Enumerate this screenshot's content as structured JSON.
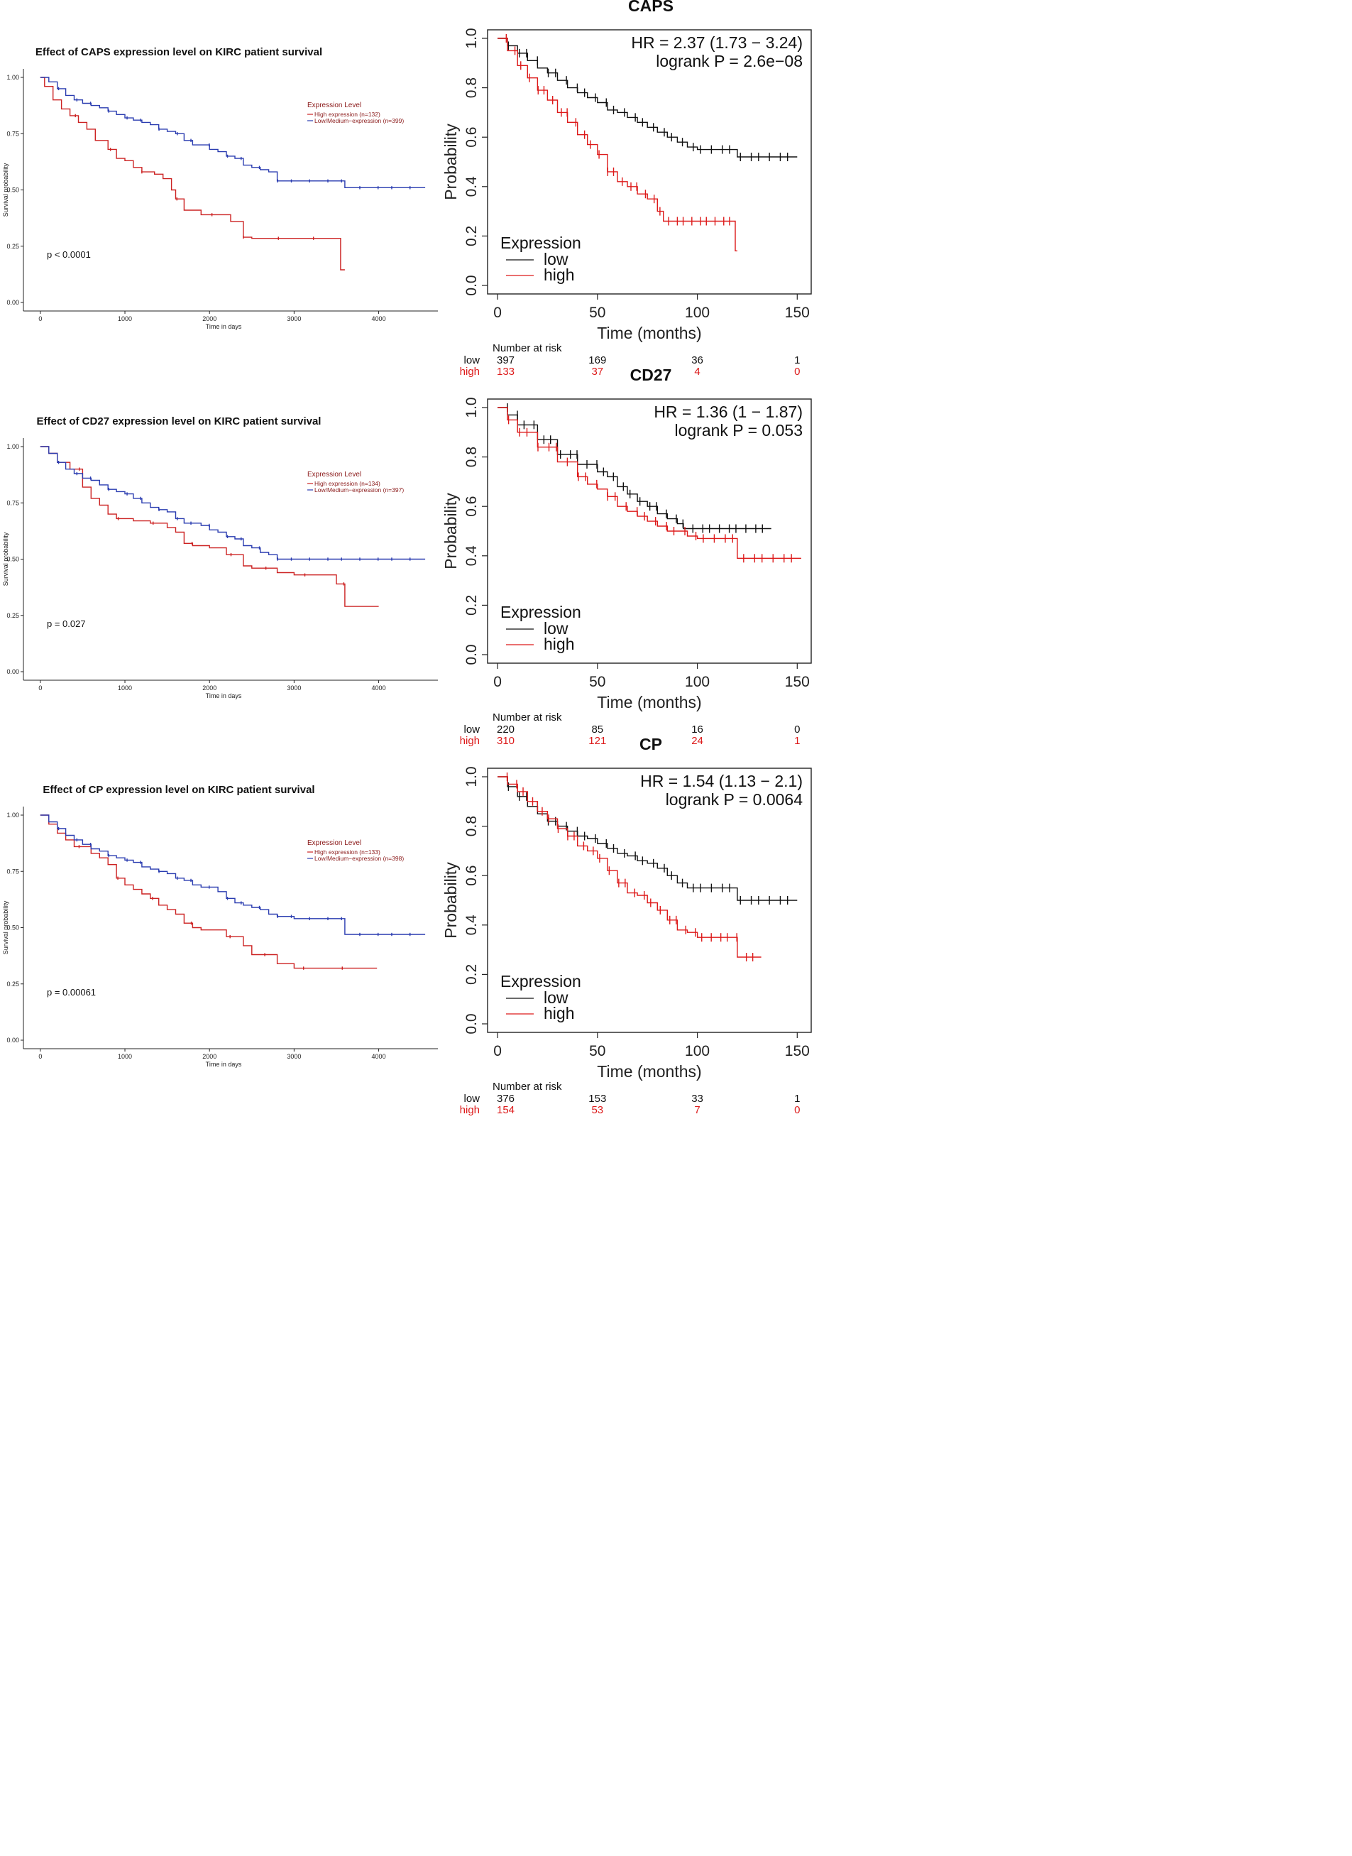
{
  "colors": {
    "high_left": "#cc2222",
    "low_left": "#2a3cb0",
    "high_right": "#dd1a1a",
    "low_right": "#111111",
    "axis": "#222222"
  },
  "chart_data": [
    {
      "type": "line",
      "subtype": "kaplan-meier",
      "title": "Effect of CAPS expression level on KIRC patient survival",
      "xlabel": "Time in days",
      "ylabel": "Survival probability",
      "xlim": [
        -200,
        4700
      ],
      "ylim": [
        0,
        1.0
      ],
      "xticks": [
        "0",
        "1000",
        "2000",
        "3000",
        "4000"
      ],
      "yticks": [
        "0.00",
        "0.25",
        "0.50",
        "0.75",
        "1.00"
      ],
      "legend_title": "Expression Level",
      "pvalue": "p < 0.0001",
      "series": [
        {
          "name": "High expression (n=132)",
          "group": "high",
          "x": [
            0,
            50,
            150,
            250,
            350,
            450,
            550,
            650,
            800,
            900,
            1000,
            1100,
            1200,
            1350,
            1450,
            1550,
            1600,
            1700,
            1900,
            2250,
            2400,
            2500,
            2800,
            3200,
            3550,
            3600
          ],
          "y": [
            1.0,
            0.96,
            0.9,
            0.86,
            0.83,
            0.8,
            0.77,
            0.72,
            0.68,
            0.64,
            0.63,
            0.6,
            0.58,
            0.57,
            0.55,
            0.5,
            0.46,
            0.41,
            0.39,
            0.36,
            0.29,
            0.285,
            0.285,
            0.285,
            0.145,
            0.145
          ]
        },
        {
          "name": "Low/Medium−expression (n=399)",
          "group": "low",
          "x": [
            0,
            100,
            200,
            300,
            400,
            500,
            600,
            700,
            800,
            900,
            1000,
            1100,
            1200,
            1300,
            1400,
            1500,
            1600,
            1700,
            1800,
            1900,
            2000,
            2100,
            2200,
            2300,
            2400,
            2500,
            2600,
            2700,
            2800,
            3000,
            3200,
            3400,
            3600,
            3800,
            4000,
            4300,
            4550
          ],
          "y": [
            1.0,
            0.98,
            0.95,
            0.92,
            0.9,
            0.885,
            0.875,
            0.865,
            0.85,
            0.835,
            0.82,
            0.81,
            0.8,
            0.79,
            0.77,
            0.76,
            0.75,
            0.72,
            0.7,
            0.7,
            0.68,
            0.67,
            0.65,
            0.64,
            0.61,
            0.6,
            0.59,
            0.58,
            0.54,
            0.54,
            0.54,
            0.54,
            0.51,
            0.51,
            0.51,
            0.51,
            0.51
          ]
        }
      ]
    },
    {
      "type": "line",
      "subtype": "kaplan-meier",
      "title": "CAPS",
      "xlabel": "Time (months)",
      "ylabel": "Probability",
      "xlim": [
        -5,
        157
      ],
      "ylim": [
        0,
        1.0
      ],
      "xticks": [
        "0",
        "50",
        "100",
        "150"
      ],
      "yticks": [
        "0.0",
        "0.2",
        "0.4",
        "0.6",
        "0.8",
        "1.0"
      ],
      "hr": "HR = 2.37 (1.73 − 3.24)",
      "logrank": "logrank P = 2.6e−08",
      "legend_title": "Expression",
      "series": [
        {
          "name": "low",
          "group": "low",
          "x": [
            0,
            5,
            10,
            15,
            20,
            25,
            30,
            35,
            40,
            45,
            50,
            55,
            60,
            65,
            70,
            75,
            80,
            85,
            90,
            95,
            100,
            110,
            120,
            130,
            150
          ],
          "y": [
            1.0,
            0.97,
            0.94,
            0.91,
            0.88,
            0.86,
            0.83,
            0.8,
            0.78,
            0.76,
            0.74,
            0.71,
            0.7,
            0.68,
            0.66,
            0.64,
            0.62,
            0.6,
            0.58,
            0.56,
            0.55,
            0.55,
            0.52,
            0.52,
            0.52
          ]
        },
        {
          "name": "high",
          "group": "high",
          "x": [
            0,
            5,
            10,
            15,
            20,
            25,
            30,
            35,
            40,
            45,
            50,
            55,
            60,
            65,
            70,
            75,
            80,
            83,
            90,
            100,
            110,
            118,
            119,
            120
          ],
          "y": [
            1.0,
            0.95,
            0.89,
            0.84,
            0.79,
            0.75,
            0.7,
            0.66,
            0.61,
            0.57,
            0.53,
            0.46,
            0.42,
            0.4,
            0.37,
            0.35,
            0.3,
            0.26,
            0.26,
            0.26,
            0.26,
            0.26,
            0.14,
            0.14
          ]
        }
      ],
      "risk_table": {
        "header": "Number at risk",
        "times": [
          0,
          50,
          100,
          150
        ],
        "rows": [
          {
            "label": "low",
            "values": [
              "397",
              "169",
              "36",
              "1"
            ]
          },
          {
            "label": "high",
            "values": [
              "133",
              "37",
              "4",
              "0"
            ]
          }
        ]
      }
    },
    {
      "type": "line",
      "subtype": "kaplan-meier",
      "title": "Effect of CD27 expression level on KIRC patient survival",
      "xlabel": "Time in days",
      "ylabel": "Survival probability",
      "xlim": [
        -200,
        4700
      ],
      "ylim": [
        0,
        1.0
      ],
      "xticks": [
        "0",
        "1000",
        "2000",
        "3000",
        "4000"
      ],
      "yticks": [
        "0.00",
        "0.25",
        "0.50",
        "0.75",
        "1.00"
      ],
      "legend_title": "Expression Level",
      "pvalue": "p = 0.027",
      "series": [
        {
          "name": "High expression (n=134)",
          "group": "high",
          "x": [
            0,
            100,
            200,
            350,
            500,
            600,
            700,
            800,
            900,
            1100,
            1300,
            1500,
            1600,
            1700,
            1800,
            2000,
            2200,
            2400,
            2500,
            2800,
            3000,
            3500,
            3600,
            4000
          ],
          "y": [
            1.0,
            0.97,
            0.93,
            0.9,
            0.82,
            0.77,
            0.74,
            0.7,
            0.68,
            0.67,
            0.66,
            0.64,
            0.62,
            0.57,
            0.56,
            0.55,
            0.52,
            0.47,
            0.46,
            0.44,
            0.43,
            0.39,
            0.29,
            0.29
          ]
        },
        {
          "name": "Low/Medium−expression (n=397)",
          "group": "low",
          "x": [
            0,
            100,
            200,
            300,
            400,
            500,
            600,
            700,
            800,
            900,
            1000,
            1100,
            1200,
            1300,
            1400,
            1500,
            1600,
            1700,
            1800,
            1900,
            2000,
            2100,
            2200,
            2300,
            2400,
            2500,
            2600,
            2700,
            2800,
            3000,
            3500,
            4000,
            4550
          ],
          "y": [
            1.0,
            0.97,
            0.93,
            0.9,
            0.88,
            0.86,
            0.85,
            0.83,
            0.81,
            0.8,
            0.79,
            0.77,
            0.75,
            0.73,
            0.72,
            0.71,
            0.68,
            0.66,
            0.66,
            0.65,
            0.63,
            0.62,
            0.6,
            0.59,
            0.56,
            0.55,
            0.53,
            0.52,
            0.5,
            0.5,
            0.5,
            0.5,
            0.5
          ]
        }
      ]
    },
    {
      "type": "line",
      "subtype": "kaplan-meier",
      "title": "CD27",
      "xlabel": "Time (months)",
      "ylabel": "Probability",
      "xlim": [
        -5,
        157
      ],
      "ylim": [
        0,
        1.0
      ],
      "xticks": [
        "0",
        "50",
        "100",
        "150"
      ],
      "yticks": [
        "0.0",
        "0.2",
        "0.4",
        "0.6",
        "0.8",
        "1.0"
      ],
      "hr": "HR = 1.36 (1 − 1.87)",
      "logrank": "logrank P = 0.053",
      "legend_title": "Expression",
      "series": [
        {
          "name": "low",
          "group": "low",
          "x": [
            0,
            5,
            10,
            20,
            30,
            40,
            50,
            55,
            60,
            65,
            70,
            75,
            80,
            85,
            90,
            93,
            100,
            110,
            120,
            137
          ],
          "y": [
            1.0,
            0.97,
            0.93,
            0.87,
            0.81,
            0.77,
            0.74,
            0.72,
            0.68,
            0.65,
            0.62,
            0.6,
            0.57,
            0.55,
            0.53,
            0.51,
            0.51,
            0.51,
            0.51,
            0.51
          ]
        },
        {
          "name": "high",
          "group": "high",
          "x": [
            0,
            5,
            10,
            20,
            30,
            40,
            45,
            50,
            55,
            60,
            65,
            70,
            75,
            80,
            85,
            90,
            95,
            100,
            110,
            119,
            120,
            140,
            152
          ],
          "y": [
            1.0,
            0.95,
            0.9,
            0.84,
            0.78,
            0.72,
            0.69,
            0.67,
            0.64,
            0.6,
            0.58,
            0.56,
            0.54,
            0.52,
            0.5,
            0.5,
            0.48,
            0.47,
            0.47,
            0.47,
            0.39,
            0.39,
            0.39
          ]
        }
      ],
      "risk_table": {
        "header": "Number at risk",
        "times": [
          0,
          50,
          100,
          150
        ],
        "rows": [
          {
            "label": "low",
            "values": [
              "220",
              "85",
              "16",
              "0"
            ]
          },
          {
            "label": "high",
            "values": [
              "310",
              "121",
              "24",
              "1"
            ]
          }
        ]
      }
    },
    {
      "type": "line",
      "subtype": "kaplan-meier",
      "title": "Effect of CP expression level on KIRC patient survival",
      "xlabel": "Time in days",
      "ylabel": "Survival probability",
      "xlim": [
        -200,
        4700
      ],
      "ylim": [
        0,
        1.0
      ],
      "xticks": [
        "0",
        "1000",
        "2000",
        "3000",
        "4000"
      ],
      "yticks": [
        "0.00",
        "0.25",
        "0.50",
        "0.75",
        "1.00"
      ],
      "legend_title": "Expression Level",
      "pvalue": "p = 0.00061",
      "series": [
        {
          "name": "High expression (n=133)",
          "group": "high",
          "x": [
            0,
            100,
            200,
            300,
            400,
            600,
            700,
            800,
            900,
            1000,
            1100,
            1200,
            1300,
            1400,
            1500,
            1600,
            1700,
            1800,
            1900,
            2000,
            2200,
            2400,
            2500,
            2800,
            3000,
            3500,
            3980
          ],
          "y": [
            1.0,
            0.96,
            0.92,
            0.89,
            0.86,
            0.83,
            0.81,
            0.78,
            0.72,
            0.69,
            0.67,
            0.65,
            0.63,
            0.6,
            0.58,
            0.56,
            0.52,
            0.5,
            0.49,
            0.49,
            0.46,
            0.42,
            0.38,
            0.34,
            0.32,
            0.32,
            0.32
          ]
        },
        {
          "name": "Low/Medium−expression (n=398)",
          "group": "low",
          "x": [
            0,
            100,
            200,
            300,
            400,
            500,
            600,
            700,
            800,
            900,
            1000,
            1100,
            1200,
            1300,
            1400,
            1500,
            1600,
            1700,
            1800,
            1900,
            2000,
            2100,
            2200,
            2300,
            2400,
            2500,
            2600,
            2700,
            2800,
            3000,
            3500,
            3600,
            4000,
            4550
          ],
          "y": [
            1.0,
            0.97,
            0.94,
            0.91,
            0.89,
            0.87,
            0.85,
            0.84,
            0.82,
            0.81,
            0.8,
            0.79,
            0.77,
            0.76,
            0.75,
            0.74,
            0.72,
            0.71,
            0.69,
            0.68,
            0.68,
            0.66,
            0.63,
            0.61,
            0.6,
            0.59,
            0.58,
            0.56,
            0.55,
            0.54,
            0.54,
            0.47,
            0.47,
            0.47
          ]
        }
      ]
    },
    {
      "type": "line",
      "subtype": "kaplan-meier",
      "title": "CP",
      "xlabel": "Time (months)",
      "ylabel": "Probability",
      "xlim": [
        -5,
        157
      ],
      "ylim": [
        0,
        1.0
      ],
      "xticks": [
        "0",
        "50",
        "100",
        "150"
      ],
      "yticks": [
        "0.0",
        "0.2",
        "0.4",
        "0.6",
        "0.8",
        "1.0"
      ],
      "hr": "HR = 1.54 (1.13 − 2.1)",
      "logrank": "logrank P = 0.0064",
      "legend_title": "Expression",
      "series": [
        {
          "name": "low",
          "group": "low",
          "x": [
            0,
            5,
            10,
            15,
            20,
            25,
            30,
            35,
            40,
            45,
            50,
            55,
            60,
            65,
            70,
            75,
            80,
            85,
            90,
            95,
            100,
            110,
            118,
            120,
            140,
            150
          ],
          "y": [
            1.0,
            0.96,
            0.92,
            0.88,
            0.85,
            0.82,
            0.8,
            0.78,
            0.76,
            0.75,
            0.73,
            0.71,
            0.69,
            0.68,
            0.66,
            0.65,
            0.63,
            0.6,
            0.57,
            0.55,
            0.55,
            0.55,
            0.55,
            0.5,
            0.5,
            0.5
          ]
        },
        {
          "name": "high",
          "group": "high",
          "x": [
            0,
            5,
            10,
            15,
            20,
            25,
            30,
            35,
            40,
            45,
            50,
            55,
            60,
            65,
            70,
            75,
            80,
            85,
            90,
            95,
            100,
            110,
            119,
            120,
            132
          ],
          "y": [
            1.0,
            0.97,
            0.94,
            0.9,
            0.86,
            0.83,
            0.79,
            0.76,
            0.72,
            0.7,
            0.67,
            0.62,
            0.57,
            0.53,
            0.52,
            0.49,
            0.46,
            0.42,
            0.38,
            0.37,
            0.35,
            0.35,
            0.35,
            0.27,
            0.27
          ]
        }
      ],
      "risk_table": {
        "header": "Number at risk",
        "times": [
          0,
          50,
          100,
          150
        ],
        "rows": [
          {
            "label": "low",
            "values": [
              "376",
              "153",
              "33",
              "1"
            ]
          },
          {
            "label": "high",
            "values": [
              "154",
              "53",
              "7",
              "0"
            ]
          }
        ]
      }
    }
  ]
}
